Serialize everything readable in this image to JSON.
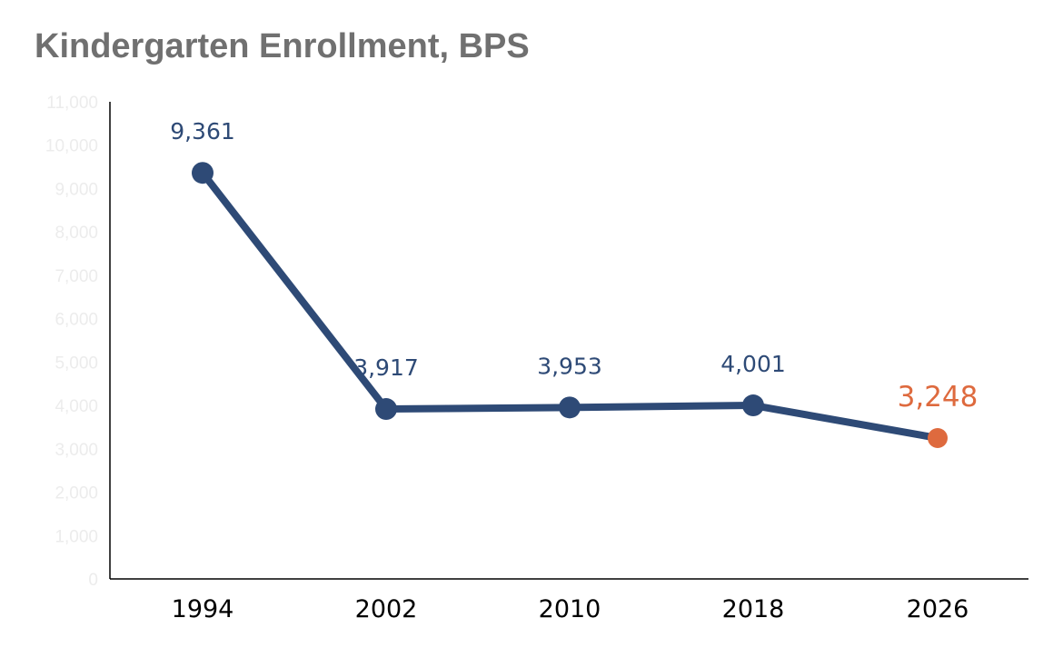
{
  "title": "Kindergarten Enrollment, BPS",
  "colors": {
    "series": "#2e4a76",
    "highlight": "#de6a3e",
    "axis": "#000000",
    "ytick": "#ececec",
    "title": "#707070"
  },
  "chart_data": {
    "type": "line",
    "title": "Kindergarten Enrollment, BPS",
    "xlabel": "",
    "ylabel": "",
    "categories": [
      "1994",
      "2002",
      "2010",
      "2018",
      "2026"
    ],
    "series": [
      {
        "values": [
          9361,
          3917,
          3953,
          4001,
          3248
        ],
        "data_labels": [
          "9,361",
          "3,917",
          "3,953",
          "4,001",
          "3,248"
        ],
        "highlight_index": 4
      }
    ],
    "ylim": [
      0,
      11000
    ],
    "yticks": [
      0,
      1000,
      2000,
      3000,
      4000,
      5000,
      6000,
      7000,
      8000,
      9000,
      10000,
      11000
    ],
    "ytick_labels": [
      "0",
      "1,000",
      "2,000",
      "3,000",
      "4,000",
      "5,000",
      "6,000",
      "7,000",
      "8,000",
      "9,000",
      "10,000",
      "11,000"
    ],
    "grid": false,
    "legend": "none"
  }
}
